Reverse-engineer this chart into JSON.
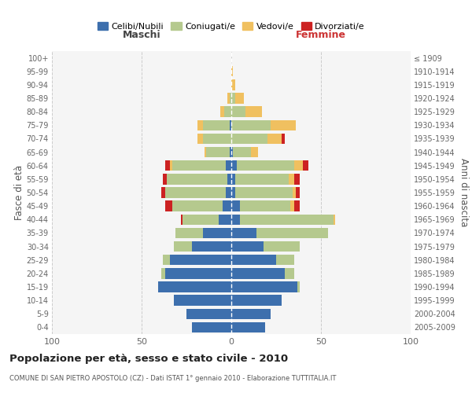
{
  "age_groups": [
    "0-4",
    "5-9",
    "10-14",
    "15-19",
    "20-24",
    "25-29",
    "30-34",
    "35-39",
    "40-44",
    "45-49",
    "50-54",
    "55-59",
    "60-64",
    "65-69",
    "70-74",
    "75-79",
    "80-84",
    "85-89",
    "90-94",
    "95-99",
    "100+"
  ],
  "birth_years": [
    "2005-2009",
    "2000-2004",
    "1995-1999",
    "1990-1994",
    "1985-1989",
    "1980-1984",
    "1975-1979",
    "1970-1974",
    "1965-1969",
    "1960-1964",
    "1955-1959",
    "1950-1954",
    "1945-1949",
    "1940-1944",
    "1935-1939",
    "1930-1934",
    "1925-1929",
    "1920-1924",
    "1915-1919",
    "1910-1914",
    "≤ 1909"
  ],
  "males": {
    "celibi": [
      22,
      25,
      32,
      41,
      37,
      34,
      22,
      16,
      7,
      5,
      3,
      2,
      3,
      1,
      0,
      1,
      0,
      0,
      0,
      0,
      0
    ],
    "coniugati": [
      0,
      0,
      0,
      0,
      2,
      4,
      10,
      15,
      20,
      28,
      34,
      34,
      30,
      13,
      16,
      15,
      4,
      1,
      0,
      0,
      0
    ],
    "vedovi": [
      0,
      0,
      0,
      0,
      0,
      0,
      0,
      0,
      0,
      0,
      0,
      0,
      1,
      1,
      3,
      3,
      2,
      1,
      0,
      0,
      0
    ],
    "divorziati": [
      0,
      0,
      0,
      0,
      0,
      0,
      0,
      0,
      1,
      4,
      2,
      2,
      3,
      0,
      0,
      0,
      0,
      0,
      0,
      0,
      0
    ]
  },
  "females": {
    "nubili": [
      19,
      22,
      28,
      37,
      30,
      25,
      18,
      14,
      5,
      5,
      2,
      2,
      3,
      1,
      0,
      0,
      0,
      0,
      0,
      0,
      0
    ],
    "coniugate": [
      0,
      0,
      0,
      1,
      5,
      10,
      20,
      40,
      52,
      28,
      32,
      30,
      32,
      10,
      20,
      22,
      8,
      2,
      0,
      0,
      0
    ],
    "vedove": [
      0,
      0,
      0,
      0,
      0,
      0,
      0,
      0,
      1,
      2,
      2,
      3,
      5,
      4,
      8,
      14,
      9,
      5,
      2,
      1,
      0
    ],
    "divorziate": [
      0,
      0,
      0,
      0,
      0,
      0,
      0,
      0,
      0,
      3,
      2,
      3,
      3,
      0,
      2,
      0,
      0,
      0,
      0,
      0,
      0
    ]
  },
  "color_celibi": "#3d6fad",
  "color_coniugati": "#b5c98e",
  "color_vedovi": "#f0c060",
  "color_divorziati": "#cc2222",
  "title": "Popolazione per età, sesso e stato civile - 2010",
  "subtitle": "COMUNE DI SAN PIETRO APOSTOLO (CZ) - Dati ISTAT 1° gennaio 2010 - Elaborazione TUTTITALIA.IT",
  "xlabel_left": "Maschi",
  "xlabel_right": "Femmine",
  "ylabel_left": "Fasce di età",
  "ylabel_right": "Anni di nascita",
  "xlim": 100,
  "background_color": "#f5f5f5",
  "grid_color": "#cccccc"
}
